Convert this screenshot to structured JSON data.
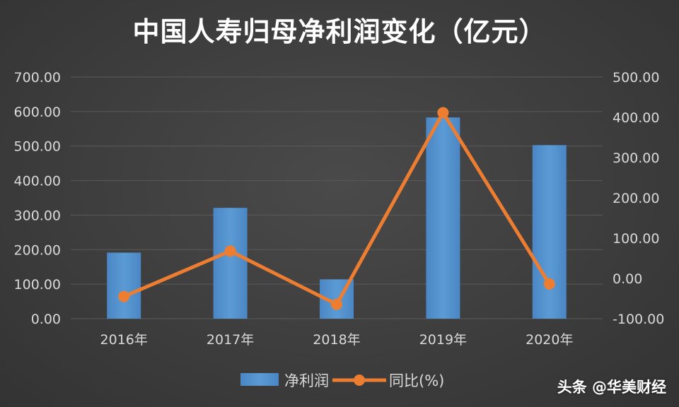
{
  "title": "中国人寿归母净利润变化（亿元）",
  "watermark": "头条 @华美财经",
  "colors": {
    "bar": "#5b9bd5",
    "line": "#ed7d31",
    "axis_text": "#d9d9d9",
    "grid": "#5a5a5a"
  },
  "chart_data": {
    "type": "bar",
    "categories": [
      "2016年",
      "2017年",
      "2018年",
      "2019年",
      "2020年"
    ],
    "series": [
      {
        "name": "净利润",
        "type": "bar",
        "axis": "left",
        "values": [
          191.27,
          321.03,
          113.95,
          582.87,
          502.68
        ]
      },
      {
        "name": "同比(%)",
        "type": "line",
        "axis": "right",
        "values": [
          -44.9,
          67.8,
          -64.5,
          411.5,
          -13.8
        ]
      }
    ],
    "y_left": {
      "min": 0,
      "max": 700,
      "ticks": [
        "0.00",
        "100.00",
        "200.00",
        "300.00",
        "400.00",
        "500.00",
        "600.00",
        "700.00"
      ]
    },
    "y_right": {
      "min": -100,
      "max": 500,
      "ticks": [
        "-100.00",
        "0.00",
        "100.00",
        "200.00",
        "300.00",
        "400.00",
        "500.00"
      ]
    },
    "grid": true,
    "legend_position": "bottom"
  }
}
